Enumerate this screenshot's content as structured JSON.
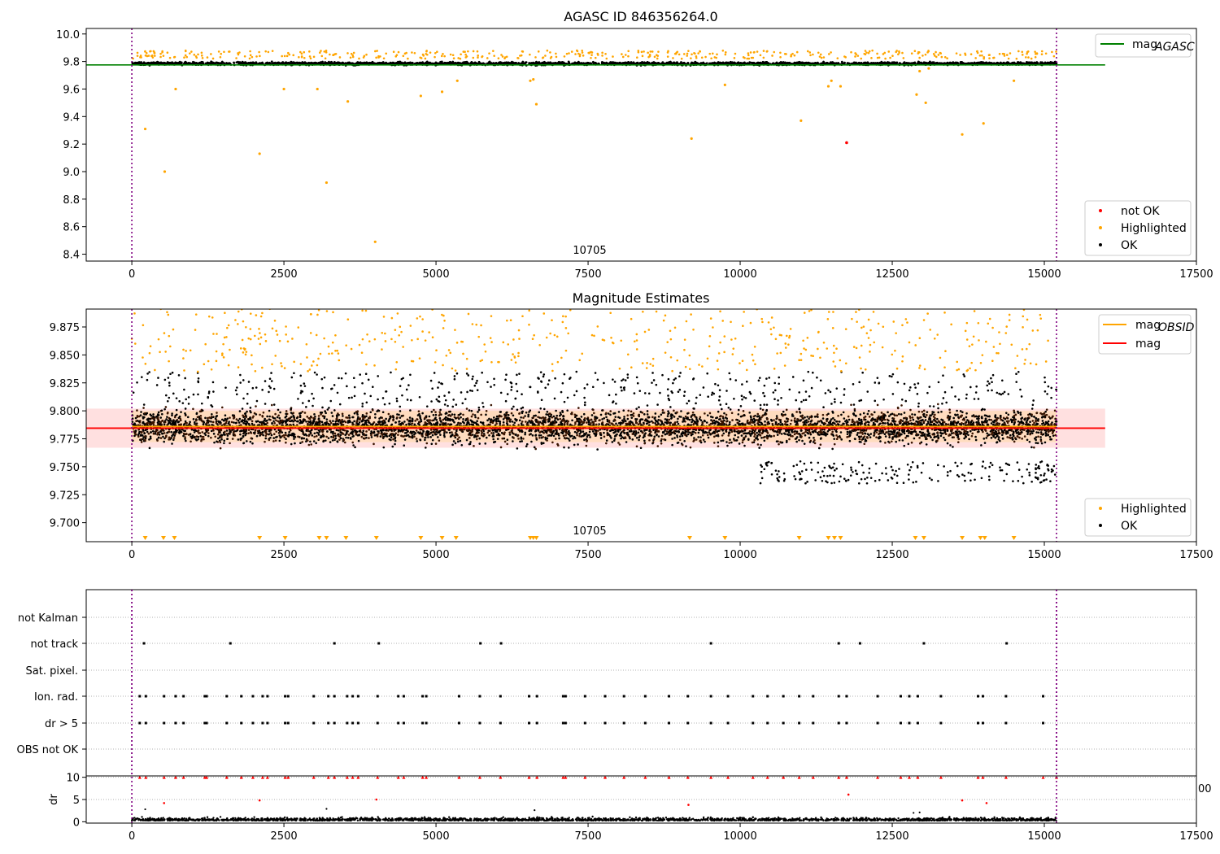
{
  "chart_data": [
    {
      "type": "scatter",
      "title": "AGASC ID 846356264.0",
      "xlabel": "",
      "ylabel": "",
      "xlim": [
        -750,
        17500
      ],
      "ylim": [
        8.35,
        10.04
      ],
      "xticks": [
        0,
        2500,
        5000,
        7500,
        10000,
        12500,
        15000,
        17500
      ],
      "yticks": [
        8.4,
        8.6,
        8.8,
        9.0,
        9.2,
        9.4,
        9.6,
        9.8,
        10.0
      ],
      "vlines": [
        0,
        15200
      ],
      "annotation": "10705",
      "legend_upper": [
        {
          "name": "mag$_{AGASC}$",
          "label": "mag",
          "sub": "AGASC",
          "color": "#008000"
        }
      ],
      "legend_lower": [
        {
          "name": "not OK",
          "color": "#ff0000"
        },
        {
          "name": "Highlighted",
          "color": "#ffa500"
        },
        {
          "name": "OK",
          "color": "#000000"
        }
      ],
      "lines": [
        {
          "name": "mag_AGASC",
          "y": 9.775,
          "x": [
            -750,
            16000
          ],
          "color": "#008000"
        }
      ],
      "band": {
        "center": 9.78,
        "spread": 0.012,
        "x": [
          0,
          15200
        ]
      },
      "outliers_highlighted": {
        "x": [
          220,
          540,
          720,
          2100,
          2500,
          3050,
          3200,
          3550,
          4000,
          4750,
          5100,
          5350,
          6550,
          6600,
          6650,
          9200,
          9750,
          11000,
          11450,
          11650,
          11500,
          12900,
          13050,
          13650,
          14000,
          14500,
          12950,
          13100
        ],
        "y": [
          9.31,
          9.0,
          9.6,
          9.13,
          9.6,
          9.6,
          8.92,
          9.51,
          8.49,
          9.55,
          9.58,
          9.66,
          9.66,
          9.67,
          9.49,
          9.24,
          9.63,
          9.37,
          9.62,
          9.62,
          9.66,
          9.56,
          9.5,
          9.27,
          9.35,
          9.66,
          9.73,
          9.75
        ]
      },
      "outliers_not_ok": {
        "x": [
          11750
        ],
        "y": [
          9.21
        ]
      }
    },
    {
      "type": "scatter",
      "title": "Magnitude Estimates",
      "xlabel": "",
      "ylabel": "",
      "xlim": [
        -750,
        17500
      ],
      "ylim": [
        9.683,
        9.891
      ],
      "xticks": [
        0,
        2500,
        5000,
        7500,
        10000,
        12500,
        15000,
        17500
      ],
      "yticks": [
        9.7,
        9.725,
        9.75,
        9.775,
        9.8,
        9.825,
        9.85,
        9.875
      ],
      "vlines": [
        0,
        15200
      ],
      "annotation": "10705",
      "legend_upper": [
        {
          "name": "mag$_{OBSID}$",
          "label": "mag",
          "sub": "OBSID",
          "color": "#ffa500"
        },
        {
          "name": "mag",
          "label": "mag",
          "sub": "",
          "color": "#ff0000"
        }
      ],
      "legend_lower": [
        {
          "name": "Highlighted",
          "color": "#ffa500"
        },
        {
          "name": "OK",
          "color": "#000000"
        }
      ],
      "lines": [
        {
          "name": "mag",
          "y": 9.7845,
          "x": [
            -750,
            16000
          ],
          "color": "#ff0000"
        },
        {
          "name": "mag_OBSID",
          "y": 9.786,
          "x": [
            0,
            15200
          ],
          "color": "#ffa500"
        }
      ],
      "band_red": {
        "y": [
          9.767,
          9.802
        ],
        "x": [
          -750,
          16000
        ]
      },
      "band_orange": {
        "y": [
          9.772,
          9.8
        ],
        "x": [
          0,
          15200
        ]
      },
      "band": {
        "center": 9.786,
        "spread": 0.012,
        "x": [
          0,
          15200
        ]
      },
      "clipped_low_markers_x": [
        220,
        520,
        700,
        2100,
        2520,
        3080,
        3200,
        3520,
        4020,
        4750,
        5100,
        5330,
        6550,
        6600,
        6650,
        9170,
        9750,
        10970,
        11450,
        11550,
        11650,
        12880,
        13020,
        13650,
        13950,
        14020,
        14500
      ]
    },
    {
      "type": "scatter",
      "title": "",
      "xlabel": "",
      "ylabel": "",
      "xlim": [
        -750,
        17500
      ],
      "categories": [
        "not Kalman",
        "not track",
        "Sat. pixel.",
        "Ion. rad.",
        "dr > 5",
        "OBS not OK"
      ],
      "vlines": [
        0,
        15200
      ],
      "flag_events": {
        "not track": [
          200,
          1620,
          3330,
          4060,
          5730,
          6070,
          9520,
          11620,
          11970,
          13020,
          14380
        ],
        "Ion. rad.": [
          130,
          230,
          530,
          720,
          850,
          1200,
          1230,
          1560,
          1800,
          1990,
          2150,
          2230,
          2520,
          2570,
          2990,
          3230,
          3330,
          3540,
          3630,
          3720,
          4040,
          4380,
          4470,
          4780,
          4840,
          5380,
          5720,
          6060,
          6530,
          6660,
          7090,
          7130,
          7450,
          7780,
          8090,
          8440,
          8830,
          9140,
          9520,
          9800,
          10210,
          10450,
          10710,
          10970,
          11200,
          11620,
          11750,
          12260,
          12640,
          12780,
          12920,
          13300,
          13910,
          13990,
          14370,
          14980
        ],
        "dr > 5": [
          130,
          230,
          530,
          720,
          850,
          1200,
          1230,
          1560,
          1800,
          1990,
          2150,
          2230,
          2520,
          2570,
          2990,
          3230,
          3330,
          3540,
          3630,
          3720,
          4040,
          4380,
          4470,
          4780,
          4840,
          5380,
          5720,
          6060,
          6530,
          6660,
          7090,
          7130,
          7450,
          7780,
          8090,
          8440,
          8830,
          9140,
          9520,
          9800,
          10210,
          10450,
          10710,
          10970,
          11200,
          11620,
          11750,
          12260,
          12640,
          12780,
          12920,
          13300,
          13910,
          13990,
          14370,
          14980
        ]
      }
    },
    {
      "type": "scatter",
      "title": "",
      "xlabel": "",
      "ylabel": "dr",
      "xlim": [
        -750,
        17500
      ],
      "ylim": [
        -0.3,
        10.3
      ],
      "xticks": [
        0,
        2500,
        5000,
        7500,
        10000,
        12500,
        15000,
        17500
      ],
      "yticks": [
        0,
        5,
        10
      ],
      "vlines": [
        0,
        15200
      ],
      "cut_tick_label": "00",
      "red_points_at_10_x": [
        130,
        230,
        530,
        720,
        850,
        1200,
        1230,
        1560,
        1800,
        1990,
        2150,
        2230,
        2520,
        2570,
        2990,
        3230,
        3330,
        3540,
        3630,
        3720,
        4040,
        4380,
        4470,
        4780,
        4840,
        5380,
        5720,
        6060,
        6530,
        6660,
        7090,
        7130,
        7450,
        7780,
        8090,
        8440,
        8830,
        9140,
        9520,
        9800,
        10210,
        10450,
        10710,
        10970,
        11200,
        11620,
        11750,
        12260,
        12640,
        12780,
        12920,
        13300,
        13910,
        13990,
        14370,
        14980,
        15200
      ],
      "red_points_mid": {
        "x": [
          530,
          2100,
          4020,
          9150,
          11780,
          13650,
          14050
        ],
        "y": [
          4.2,
          4.8,
          5.0,
          3.8,
          6.1,
          4.8,
          4.2
        ]
      },
      "black_points_mid": {
        "x": [
          220,
          3200,
          6620,
          12850,
          12950
        ],
        "y": [
          2.8,
          2.9,
          2.6,
          2.0,
          2.1
        ]
      }
    }
  ]
}
